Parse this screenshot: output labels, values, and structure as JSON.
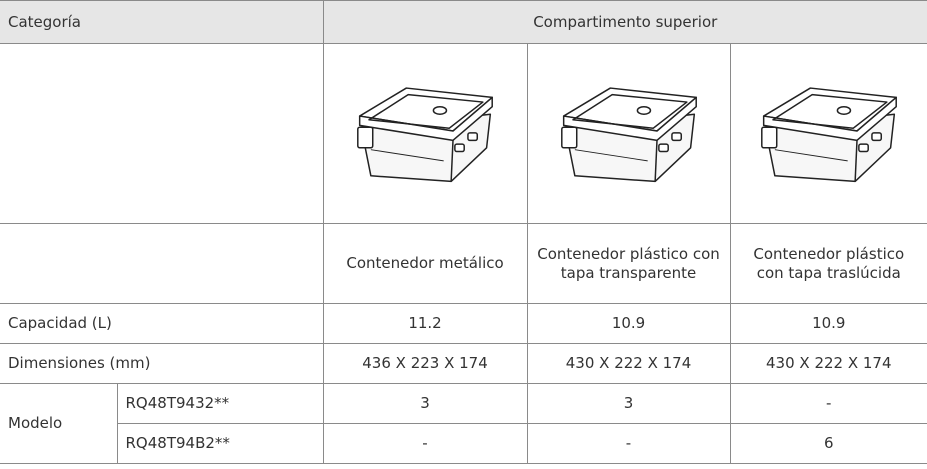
{
  "table": {
    "header": [
      "Categoría",
      "Compartimento superior"
    ],
    "names": [
      "Contenedor metálico",
      "Contenedor plástico con tapa transparente",
      "Contenedor plástico con tapa traslúcida"
    ],
    "rows": [
      [
        "Capacidad (L)",
        "11.2",
        "10.9",
        "10.9"
      ],
      [
        "Dimensiones (mm)",
        "436 X 223 X 174",
        "430 X 222 X 174",
        "430 X 222 X 174"
      ]
    ],
    "model": {
      "label": "Modelo",
      "rows": [
        [
          "RQ48T9432**",
          "3",
          "3",
          "-"
        ],
        [
          "RQ48T94B2**",
          "-",
          "-",
          "6"
        ]
      ]
    }
  }
}
